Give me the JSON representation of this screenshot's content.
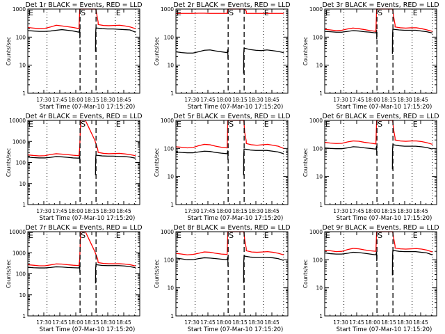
{
  "chart_data": [
    {
      "type": "line",
      "title": "Det 1r BLACK = Events, RED = LLD",
      "xlabel": "Start Time (07-Mar-10 17:15:20)",
      "ylabel": "Counts/sec",
      "yscale": "log",
      "ylim": [
        1,
        1000
      ],
      "yticks": [
        "1",
        "10",
        "100",
        "1000"
      ],
      "xticks": [
        "17:30",
        "17:45",
        "18:00",
        "18:15",
        "18:30",
        "18:45"
      ],
      "xlim_minutes": [
        0,
        105
      ],
      "markers": {
        "E_left": "E",
        "S": "S",
        "E_right": "E"
      },
      "dashed_lines_minutes": [
        49,
        64
      ],
      "dotted_lines_minutes": [
        18,
        82,
        101
      ],
      "series": [
        {
          "name": "Events",
          "color": "#000000",
          "before": [
            170,
            165,
            160,
            160,
            165,
            175,
            185,
            175,
            165,
            150
          ],
          "after": [
            210,
            200,
            195,
            195,
            190,
            185,
            180,
            150
          ],
          "dip": 30
        },
        {
          "name": "LLD",
          "color": "#ff0000",
          "before": [
            220,
            210,
            200,
            205,
            230,
            265,
            250,
            235,
            220,
            200
          ],
          "after": [
            280,
            260,
            255,
            260,
            265,
            250,
            230,
            200
          ],
          "dip": null
        }
      ]
    },
    {
      "type": "line",
      "title": "Det 2r BLACK = Events, RED = LLD",
      "xlabel": "Start Time (07-Mar-10 17:15:20)",
      "ylabel": "Counts/sec",
      "yscale": "log",
      "ylim": [
        1,
        1000
      ],
      "yticks": [
        "1",
        "10",
        "100",
        "1000"
      ],
      "xticks": [
        "17:30",
        "17:45",
        "18:00",
        "18:15",
        "18:30",
        "18:45"
      ],
      "xlim_minutes": [
        0,
        105
      ],
      "markers": {
        "E_left": "E",
        "S": "S",
        "E_right": "E"
      },
      "dashed_lines_minutes": [
        49,
        64
      ],
      "dotted_lines_minutes": [
        18,
        82,
        101
      ],
      "series": [
        {
          "name": "Events",
          "color": "#000000",
          "before": [
            30,
            28,
            27,
            27,
            30,
            34,
            35,
            32,
            30,
            28
          ],
          "after": [
            40,
            36,
            34,
            33,
            35,
            33,
            31,
            28
          ],
          "dip": 5
        },
        {
          "name": "LLD",
          "color": "#ff0000",
          "before": [
            700,
            700,
            700,
            700,
            710,
            710,
            700,
            700,
            700,
            700
          ],
          "after": [
            700,
            700,
            700,
            700,
            700,
            700,
            700,
            700
          ],
          "dip": null
        }
      ]
    },
    {
      "type": "line",
      "title": "Det 3r BLACK = Events, RED = LLD",
      "xlabel": "Start Time (07-Mar-10 17:15:20)",
      "ylabel": "Counts/sec",
      "yscale": "log",
      "ylim": [
        1,
        1000
      ],
      "yticks": [
        "1",
        "10",
        "100",
        "1000"
      ],
      "xticks": [
        "17:30",
        "17:45",
        "18:00",
        "18:15",
        "18:30",
        "18:45"
      ],
      "xlim_minutes": [
        0,
        105
      ],
      "markers": {
        "E_left": "E",
        "S": "S",
        "E_right": "E"
      },
      "dashed_lines_minutes": [
        49,
        64
      ],
      "dotted_lines_minutes": [
        18,
        82,
        101
      ],
      "series": [
        {
          "name": "Events",
          "color": "#000000",
          "before": [
            160,
            155,
            150,
            150,
            160,
            170,
            165,
            155,
            150,
            140
          ],
          "after": [
            190,
            180,
            175,
            175,
            175,
            165,
            155,
            140
          ],
          "dip": 25
        },
        {
          "name": "LLD",
          "color": "#ff0000",
          "before": [
            190,
            180,
            170,
            175,
            195,
            210,
            200,
            185,
            170,
            160
          ],
          "after": [
            230,
            215,
            210,
            215,
            215,
            200,
            180,
            160
          ],
          "dip": null
        }
      ]
    },
    {
      "type": "line",
      "title": "Det 4r BLACK = Events, RED = LLD",
      "xlabel": "Start Time (07-Mar-10 17:15:20)",
      "ylabel": "Counts/sec",
      "yscale": "log",
      "ylim": [
        1,
        10000
      ],
      "yticks": [
        "1",
        "10",
        "100",
        "1000",
        "10000"
      ],
      "xticks": [
        "17:30",
        "17:45",
        "18:00",
        "18:15",
        "18:30",
        "18:45"
      ],
      "xlim_minutes": [
        0,
        105
      ],
      "markers": {
        "E_left": "E",
        "S": "S",
        "E_right": "E"
      },
      "dashed_lines_minutes": [
        49,
        64
      ],
      "dotted_lines_minutes": [
        18,
        82,
        101
      ],
      "peak": 25000,
      "series": [
        {
          "name": "Events",
          "color": "#000000",
          "before": [
            180,
            170,
            165,
            165,
            175,
            190,
            185,
            175,
            165,
            160
          ],
          "after": [
            220,
            205,
            200,
            200,
            195,
            190,
            180,
            160
          ],
          "dip": 25
        },
        {
          "name": "LLD",
          "color": "#ff0000",
          "before": [
            230,
            215,
            205,
            210,
            240,
            260,
            250,
            235,
            220,
            210
          ],
          "after": [
            300,
            270,
            260,
            265,
            270,
            255,
            235,
            210
          ],
          "dip": null
        }
      ]
    },
    {
      "type": "line",
      "title": "Det 5r BLACK = Events, RED = LLD",
      "xlabel": "Start Time (07-Mar-10 17:15:20)",
      "ylabel": "Counts/sec",
      "yscale": "log",
      "ylim": [
        1,
        1000
      ],
      "yticks": [
        "1",
        "10",
        "100",
        "1000"
      ],
      "xticks": [
        "17:30",
        "17:45",
        "18:00",
        "18:15",
        "18:30",
        "18:45"
      ],
      "xlim_minutes": [
        0,
        105
      ],
      "markers": {
        "E_left": "E",
        "S": "S",
        "E_right": "E"
      },
      "dashed_lines_minutes": [
        49,
        64
      ],
      "dotted_lines_minutes": [
        18,
        82,
        101
      ],
      "series": [
        {
          "name": "Events",
          "color": "#000000",
          "before": [
            75,
            72,
            70,
            70,
            75,
            80,
            78,
            72,
            68,
            65
          ],
          "after": [
            95,
            88,
            85,
            85,
            85,
            80,
            75,
            65
          ],
          "dip": 11
        },
        {
          "name": "LLD",
          "color": "#ff0000",
          "before": [
            115,
            110,
            105,
            108,
            125,
            140,
            135,
            120,
            110,
            105
          ],
          "after": [
            150,
            135,
            130,
            135,
            140,
            130,
            120,
            100
          ],
          "dip": null
        }
      ]
    },
    {
      "type": "line",
      "title": "Det 6r BLACK = Events, RED = LLD",
      "xlabel": "Start Time (07-Mar-10 17:15:20)",
      "ylabel": "Counts/sec",
      "yscale": "log",
      "ylim": [
        1,
        1000
      ],
      "yticks": [
        "1",
        "10",
        "100",
        "1000"
      ],
      "xticks": [
        "17:30",
        "17:45",
        "18:00",
        "18:15",
        "18:30",
        "18:45"
      ],
      "xlim_minutes": [
        0,
        105
      ],
      "markers": {
        "E_left": "E",
        "S": "S",
        "E_right": "E"
      },
      "dashed_lines_minutes": [
        49,
        64
      ],
      "dotted_lines_minutes": [
        18,
        82,
        101
      ],
      "series": [
        {
          "name": "Events",
          "color": "#000000",
          "before": [
            105,
            100,
            98,
            98,
            105,
            115,
            112,
            105,
            100,
            95
          ],
          "after": [
            135,
            125,
            120,
            120,
            120,
            115,
            108,
            95
          ],
          "dip": 18
        },
        {
          "name": "LLD",
          "color": "#ff0000",
          "before": [
            165,
            155,
            150,
            152,
            170,
            185,
            180,
            165,
            155,
            145
          ],
          "after": [
            200,
            185,
            180,
            185,
            185,
            175,
            160,
            140
          ],
          "dip": null
        }
      ]
    },
    {
      "type": "line",
      "title": "Det 7r BLACK = Events, RED = LLD",
      "xlabel": "Start Time (07-Mar-10 17:15:20)",
      "ylabel": "Counts/sec",
      "yscale": "log",
      "ylim": [
        1,
        10000
      ],
      "yticks": [
        "1",
        "10",
        "100",
        "1000",
        "10000"
      ],
      "xticks": [
        "17:30",
        "17:45",
        "18:00",
        "18:15",
        "18:30",
        "18:45"
      ],
      "xlim_minutes": [
        0,
        105
      ],
      "markers": {
        "E_left": "E",
        "S": "S",
        "E_right": "E"
      },
      "dashed_lines_minutes": [
        49,
        64
      ],
      "dotted_lines_minutes": [
        18,
        82,
        101
      ],
      "peak": 25000,
      "series": [
        {
          "name": "Events",
          "color": "#000000",
          "before": [
            205,
            195,
            190,
            190,
            200,
            215,
            210,
            200,
            195,
            190
          ],
          "after": [
            270,
            250,
            245,
            245,
            245,
            235,
            220,
            195
          ],
          "dip": 35
        },
        {
          "name": "LLD",
          "color": "#ff0000",
          "before": [
            270,
            255,
            240,
            240,
            265,
            295,
            290,
            270,
            255,
            245
          ],
          "after": [
            340,
            310,
            300,
            300,
            300,
            290,
            270,
            235
          ],
          "dip": null
        }
      ]
    },
    {
      "type": "line",
      "title": "Det 8r BLACK = Events, RED = LLD",
      "xlabel": "Start Time (07-Mar-10 17:15:20)",
      "ylabel": "Counts/sec",
      "yscale": "log",
      "ylim": [
        1,
        1000
      ],
      "yticks": [
        "1",
        "10",
        "100",
        "1000"
      ],
      "xticks": [
        "17:30",
        "17:45",
        "18:00",
        "18:15",
        "18:30",
        "18:45"
      ],
      "xlim_minutes": [
        0,
        105
      ],
      "markers": {
        "E_left": "E",
        "S": "S",
        "E_right": "E"
      },
      "dashed_lines_minutes": [
        49,
        64
      ],
      "dotted_lines_minutes": [
        18,
        82,
        101
      ],
      "series": [
        {
          "name": "Events",
          "color": "#000000",
          "before": [
            115,
            108,
            100,
            100,
            110,
            118,
            115,
            110,
            105,
            100
          ],
          "after": [
            135,
            125,
            120,
            120,
            120,
            118,
            110,
            95
          ],
          "dip": 15
        },
        {
          "name": "LLD",
          "color": "#ff0000",
          "before": [
            170,
            160,
            150,
            155,
            170,
            190,
            185,
            170,
            160,
            155
          ],
          "after": [
            210,
            190,
            185,
            190,
            195,
            185,
            170,
            150
          ],
          "dip": null
        }
      ]
    },
    {
      "type": "line",
      "title": "Det 9r BLACK = Events, RED = LLD",
      "xlabel": "Start Time (07-Mar-10 17:15:20)",
      "ylabel": "Counts/sec",
      "yscale": "log",
      "ylim": [
        1,
        1000
      ],
      "yticks": [
        "1",
        "10",
        "100",
        "1000"
      ],
      "xticks": [
        "17:30",
        "17:45",
        "18:00",
        "18:15",
        "18:30",
        "18:45"
      ],
      "xlim_minutes": [
        0,
        105
      ],
      "markers": {
        "E_left": "E",
        "S": "S",
        "E_right": "E"
      },
      "dashed_lines_minutes": [
        49,
        64
      ],
      "dotted_lines_minutes": [
        18,
        82,
        101
      ],
      "series": [
        {
          "name": "Events",
          "color": "#000000",
          "before": [
            175,
            165,
            160,
            160,
            170,
            185,
            180,
            170,
            160,
            150
          ],
          "after": [
            215,
            200,
            195,
            195,
            195,
            185,
            175,
            150
          ],
          "dip": 28
        },
        {
          "name": "LLD",
          "color": "#ff0000",
          "before": [
            220,
            210,
            195,
            200,
            230,
            255,
            245,
            225,
            210,
            200
          ],
          "after": [
            260,
            245,
            240,
            245,
            250,
            240,
            220,
            190
          ],
          "dip": null
        }
      ]
    }
  ]
}
